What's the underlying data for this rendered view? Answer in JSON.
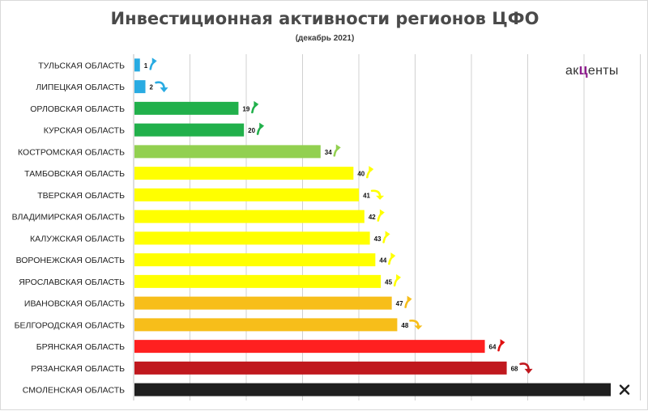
{
  "page": {
    "title": "Инвестиционная активности регионов ЦФО",
    "subtitle": "(декабрь 2021)"
  },
  "logo": {
    "before": "ак",
    "mark": "ц",
    "after": "енты"
  },
  "chart_data": {
    "type": "bar",
    "orientation": "horizontal",
    "title": "Инвестиционная активности регионов ЦФО",
    "subtitle": "(декабрь 2021)",
    "xlim": [
      0,
      87
    ],
    "grid": true,
    "categories": [
      "ТУЛЬСКАЯ ОБЛАСТЬ",
      "ЛИПЕЦКАЯ ОБЛАСТЬ",
      "ОРЛОВСКАЯ ОБЛАСТЬ",
      "КУРСКАЯ ОБЛАСТЬ",
      "КОСТРОМСКАЯ ОБЛАСТЬ",
      "ТАМБОВСКАЯ ОБЛАСТЬ",
      "ТВЕРСКАЯ ОБЛАСТЬ",
      "ВЛАДИМИРСКАЯ ОБЛАСТЬ",
      "КАЛУЖСКАЯ ОБЛАСТЬ",
      "ВОРОНЕЖСКАЯ ОБЛАСТЬ",
      "ЯРОСЛАВСКАЯ ОБЛАСТЬ",
      "ИВАНОВСКАЯ ОБЛАСТЬ",
      "БЕЛГОРОДСКАЯ ОБЛАСТЬ",
      "БРЯНСКАЯ ОБЛАСТЬ",
      "РЯЗАНСКАЯ ОБЛАСТЬ",
      "СМОЛЕНСКАЯ ОБЛАСТЬ"
    ],
    "values": [
      1,
      2,
      19,
      20,
      34,
      40,
      41,
      42,
      43,
      44,
      45,
      47,
      48,
      64,
      68,
      87
    ],
    "labels": [
      "1",
      "2",
      "19",
      "20",
      "34",
      "40",
      "41",
      "42",
      "43",
      "44",
      "45",
      "47",
      "48",
      "64",
      "68",
      ""
    ],
    "colors": [
      "#29abe2",
      "#29abe2",
      "#21b04b",
      "#21b04b",
      "#92d050",
      "#ffff00",
      "#ffff00",
      "#ffff00",
      "#ffff00",
      "#ffff00",
      "#ffff00",
      "#f7be1a",
      "#f7be1a",
      "#ff2020",
      "#c0181e",
      "#1f1f1f"
    ],
    "trend_markers": [
      "up",
      "down",
      "up",
      "up",
      "up",
      "up",
      "curve",
      "up",
      "up",
      "up",
      "up",
      "up",
      "curve",
      "up",
      "down",
      "cross"
    ],
    "trend_colors": [
      "#29abe2",
      "#29abe2",
      "#21b04b",
      "#21b04b",
      "#92d050",
      "#ffff00",
      "#ffff00",
      "#ffff00",
      "#ffff00",
      "#ffff00",
      "#ffff00",
      "#f7be1a",
      "#f7be1a",
      "#e01010",
      "#c0181e",
      "#1f1f1f"
    ]
  }
}
